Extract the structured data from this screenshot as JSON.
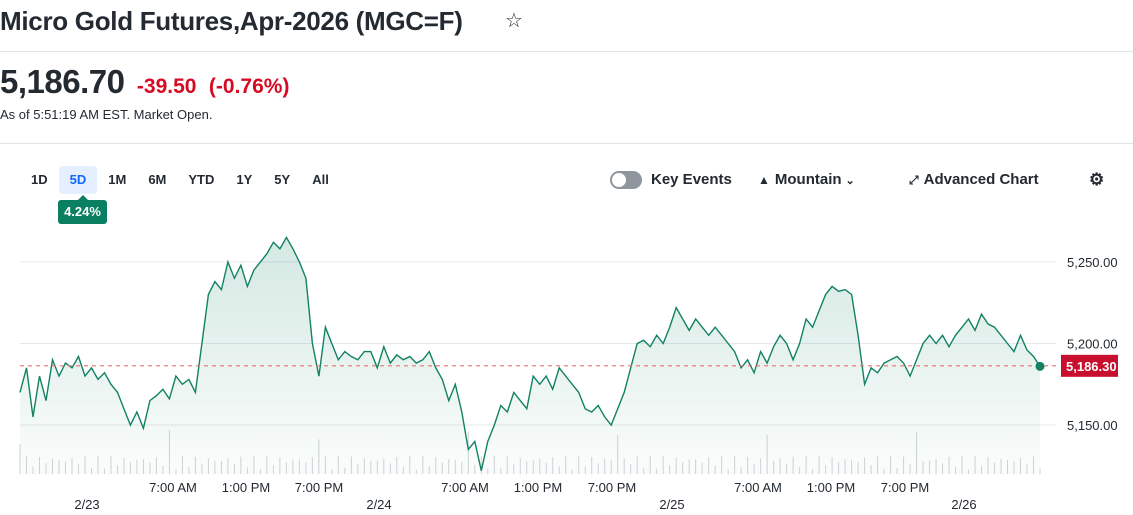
{
  "header": {
    "title": "Micro Gold Futures,Apr-2026 (MGC=F)",
    "star_icon": "star-outline-icon"
  },
  "quote": {
    "price": "5,186.70",
    "change": "-39.50",
    "change_pct": "(-0.76%)",
    "as_of": "As of 5:51:19 AM EST. Market Open."
  },
  "controls": {
    "ranges": [
      "1D",
      "5D",
      "1M",
      "6M",
      "YTD",
      "1Y",
      "5Y",
      "All"
    ],
    "active_range": "5D",
    "range_change_badge": "4.24%",
    "key_events_label": "Key Events",
    "chart_type_label": "Mountain",
    "advanced_chart_label": "Advanced Chart",
    "settings_icon": "gear-icon",
    "mountain_icon": "mountain-icon",
    "expand_icon": "expand-arrows-icon"
  },
  "chart_data": {
    "type": "area",
    "ylim": [
      5120,
      5272
    ],
    "y_ticks": [
      "5,250.00",
      "5,200.00",
      "5,150.00"
    ],
    "y_tick_values": [
      5250,
      5200,
      5150
    ],
    "x_ticks_time": [
      "7:00 AM",
      "1:00 PM",
      "7:00 PM",
      "7:00 AM",
      "1:00 PM",
      "7:00 PM",
      "7:00 AM",
      "1:00 PM",
      "7:00 PM"
    ],
    "x_ticks_date": [
      "2/23",
      "2/24",
      "2/25",
      "2/26"
    ],
    "reference_price": 5186.3,
    "last_price_label": "5,186.30",
    "colors": {
      "line": "#128262",
      "fill_top": "#128262",
      "reference": "#e57373",
      "last_label_bg": "#c8102e"
    },
    "series": [
      {
        "values": [
          5170,
          5185,
          5155,
          5180,
          5165,
          5190,
          5180,
          5188,
          5185,
          5192,
          5180,
          5185,
          5178,
          5182,
          5175,
          5170,
          5160,
          5150,
          5158,
          5148,
          5165,
          5168,
          5172,
          5166,
          5180,
          5175,
          5178,
          5170,
          5200,
          5230,
          5238,
          5233,
          5250,
          5240,
          5248,
          5235,
          5245,
          5250,
          5255,
          5262,
          5258,
          5265,
          5258,
          5250,
          5240,
          5200,
          5180,
          5210,
          5200,
          5190,
          5195,
          5192,
          5190,
          5195,
          5195,
          5185,
          5198,
          5188,
          5193,
          5190,
          5192,
          5188,
          5190,
          5195,
          5185,
          5178,
          5165,
          5175,
          5158,
          5135,
          5140,
          5122,
          5140,
          5150,
          5162,
          5158,
          5170,
          5165,
          5160,
          5180,
          5175,
          5180,
          5172,
          5185,
          5180,
          5175,
          5170,
          5160,
          5158,
          5162,
          5155,
          5150,
          5160,
          5170,
          5185,
          5200,
          5202,
          5198,
          5205,
          5200,
          5210,
          5222,
          5215,
          5208,
          5215,
          5210,
          5205,
          5210,
          5205,
          5200,
          5195,
          5185,
          5190,
          5182,
          5195,
          5188,
          5198,
          5205,
          5200,
          5190,
          5200,
          5215,
          5210,
          5220,
          5230,
          5235,
          5232,
          5233,
          5230,
          5205,
          5175,
          5185,
          5182,
          5188,
          5190,
          5192,
          5188,
          5180,
          5190,
          5200,
          5205,
          5200,
          5205,
          5198,
          5205,
          5210,
          5215,
          5208,
          5218,
          5212,
          5210,
          5205,
          5200,
          5195,
          5205,
          5196,
          5192,
          5186
        ]
      }
    ]
  }
}
